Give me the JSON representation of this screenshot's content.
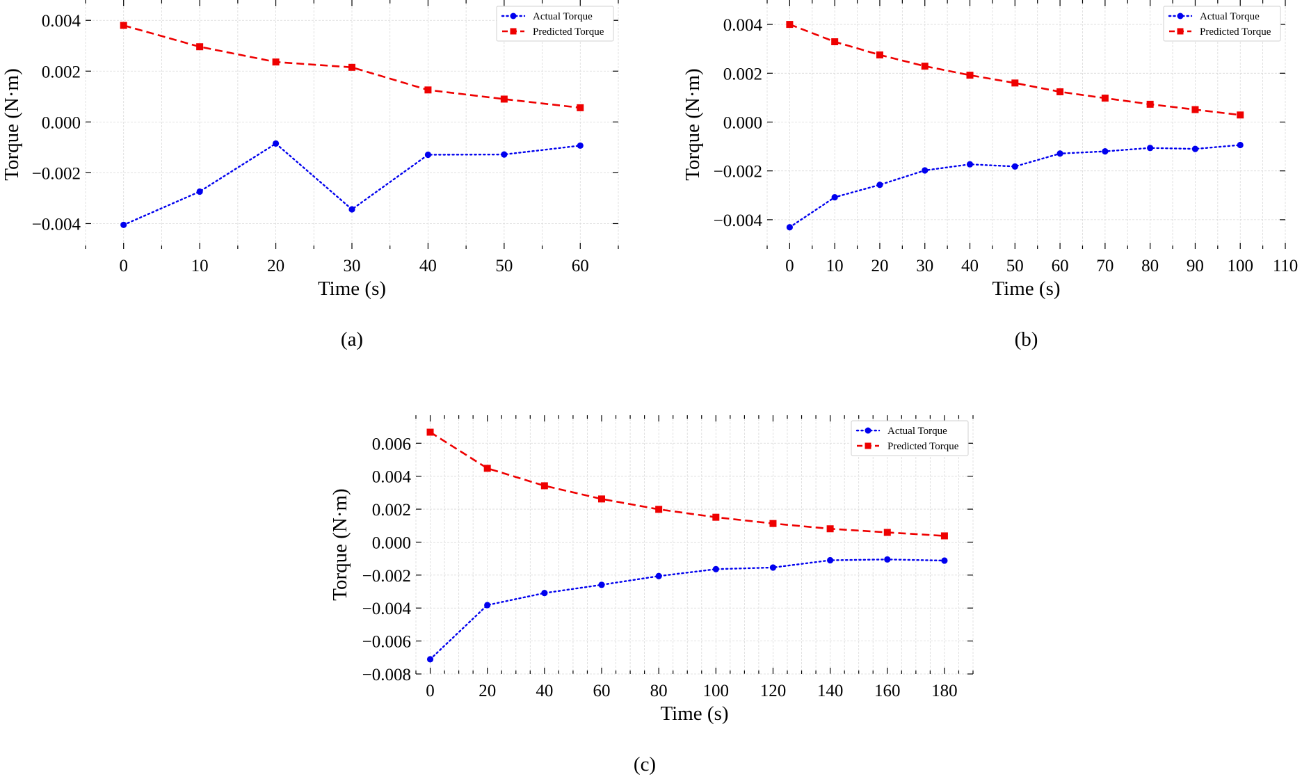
{
  "figure": {
    "description": "Actual vs predicted torque over time, three panels",
    "legend": {
      "actual_label": "Actual Torque",
      "predicted_label": "Predicted Torque"
    },
    "colors": {
      "actual": "#0000ee",
      "predicted": "#ee0000"
    }
  },
  "chart_data": [
    {
      "type": "line",
      "panel": "a",
      "caption": "(a)",
      "xlabel": "Time (s)",
      "ylabel": "Torque (N·m)",
      "xlim": [
        -5,
        65
      ],
      "ylim": [
        -0.005,
        0.0048
      ],
      "xticks": [
        0,
        10,
        20,
        30,
        40,
        50,
        60
      ],
      "xtick_labels": [
        "0",
        "10",
        "20",
        "30",
        "40",
        "50",
        "60"
      ],
      "x_minor_step": 5,
      "yticks": [
        -0.004,
        -0.002,
        0.0,
        0.002,
        0.004
      ],
      "ytick_labels": [
        "−0.004",
        "−0.002",
        "0.000",
        "0.002",
        "0.004"
      ],
      "grid": true,
      "legend_position": "top-right",
      "x": [
        0,
        10,
        20,
        30,
        40,
        50,
        60
      ],
      "series": [
        {
          "name": "Actual Torque",
          "style": "dotted-circle",
          "values": [
            -0.00405,
            -0.00274,
            -0.00085,
            -0.00344,
            -0.00129,
            -0.00128,
            -0.00093
          ]
        },
        {
          "name": "Predicted Torque",
          "style": "dashed-square",
          "values": [
            0.0038,
            0.00296,
            0.00236,
            0.00215,
            0.00126,
            0.0009,
            0.00056
          ]
        }
      ]
    },
    {
      "type": "line",
      "panel": "b",
      "caption": "(b)",
      "xlabel": "Time (s)",
      "ylabel": "Torque (N·m)",
      "xlim": [
        -5,
        110
      ],
      "ylim": [
        -0.0052,
        0.005
      ],
      "xticks": [
        0,
        10,
        20,
        30,
        40,
        50,
        60,
        70,
        80,
        90,
        100,
        110
      ],
      "xtick_labels": [
        "0",
        "10",
        "20",
        "30",
        "40",
        "50",
        "60",
        "70",
        "80",
        "90",
        "100",
        "110"
      ],
      "x_minor_step": 5,
      "yticks": [
        -0.004,
        -0.002,
        0.0,
        0.002,
        0.004
      ],
      "ytick_labels": [
        "−0.004",
        "−0.002",
        "0.000",
        "0.002",
        "0.004"
      ],
      "grid": true,
      "legend_position": "top-right",
      "x": [
        0,
        10,
        20,
        30,
        40,
        50,
        60,
        70,
        80,
        90,
        100
      ],
      "series": [
        {
          "name": "Actual Torque",
          "style": "dotted-circle",
          "values": [
            -0.00431,
            -0.00308,
            -0.00257,
            -0.00198,
            -0.00173,
            -0.00182,
            -0.00129,
            -0.0012,
            -0.00106,
            -0.0011,
            -0.00094
          ]
        },
        {
          "name": "Predicted Torque",
          "style": "dashed-square",
          "values": [
            0.004,
            0.00329,
            0.00275,
            0.00229,
            0.00192,
            0.0016,
            0.00124,
            0.00098,
            0.00073,
            0.00051,
            0.00029
          ]
        }
      ]
    },
    {
      "type": "line",
      "panel": "c",
      "caption": "(c)",
      "xlabel": "Time (s)",
      "ylabel": "Torque (N·m)",
      "xlim": [
        -5,
        190
      ],
      "ylim": [
        -0.008,
        0.0077
      ],
      "xticks": [
        0,
        20,
        40,
        60,
        80,
        100,
        120,
        140,
        160,
        180
      ],
      "xtick_labels": [
        "0",
        "20",
        "40",
        "60",
        "80",
        "100",
        "120",
        "140",
        "160",
        "180"
      ],
      "x_minor_step": 5,
      "yticks": [
        -0.008,
        -0.006,
        -0.004,
        -0.002,
        0.0,
        0.002,
        0.004,
        0.006
      ],
      "ytick_labels": [
        "−0.008",
        "−0.006",
        "−0.004",
        "−0.002",
        "0.000",
        "0.002",
        "0.004",
        "0.006"
      ],
      "grid": true,
      "legend_position": "top-right",
      "x": [
        0,
        20,
        40,
        60,
        80,
        100,
        120,
        140,
        160,
        180
      ],
      "series": [
        {
          "name": "Actual Torque",
          "style": "dotted-circle",
          "values": [
            -0.00711,
            -0.00382,
            -0.00309,
            -0.00259,
            -0.00206,
            -0.00164,
            -0.00154,
            -0.0011,
            -0.00105,
            -0.00112
          ]
        },
        {
          "name": "Predicted Torque",
          "style": "dashed-square",
          "values": [
            0.00667,
            0.00448,
            0.00342,
            0.00262,
            0.00199,
            0.00151,
            0.00113,
            0.00081,
            0.00059,
            0.00038
          ]
        }
      ]
    }
  ]
}
